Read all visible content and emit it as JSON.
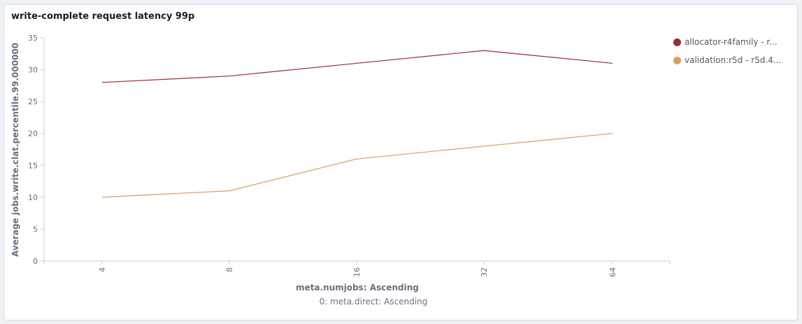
{
  "panel": {
    "title": "write-complete request latency 99p"
  },
  "chart_data": {
    "type": "line",
    "title": "write-complete request latency 99p",
    "xlabel": "meta.numjobs: Ascending",
    "xsublabel": "0: meta.direct: Ascending",
    "ylabel": "Average jobs.write.clat.percentile.99.000000",
    "categories": [
      "4",
      "8",
      "16",
      "32",
      "64"
    ],
    "yticks": [
      0,
      5,
      10,
      15,
      20,
      25,
      30,
      35
    ],
    "ylim": [
      0,
      35
    ],
    "grid": false,
    "legend_position": "right",
    "series": [
      {
        "name": "allocator-r4family - r...",
        "color": "#9b2d30",
        "values": [
          28,
          29,
          31,
          33,
          31
        ]
      },
      {
        "name": "validation:r5d - r5d.4...",
        "color": "#d6a060",
        "values": [
          10,
          11,
          16,
          18,
          20
        ]
      }
    ]
  }
}
